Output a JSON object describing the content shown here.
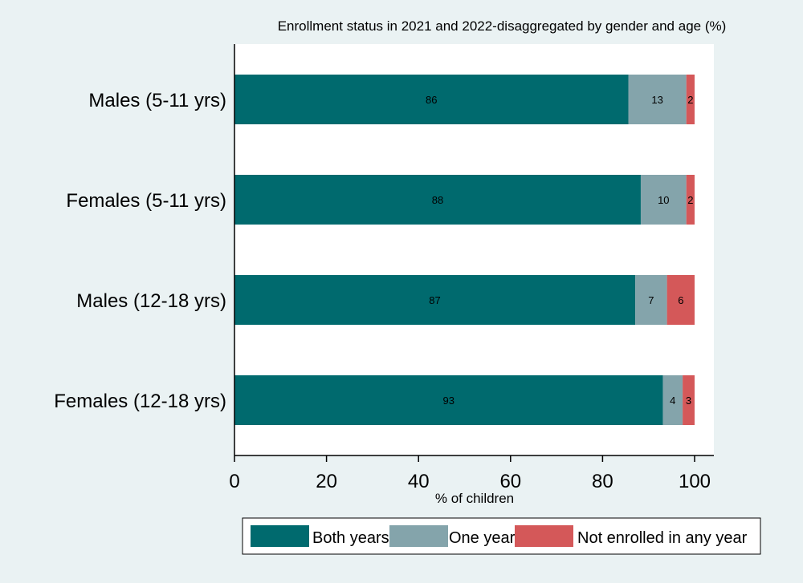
{
  "chart_data": {
    "type": "bar",
    "orientation": "horizontal",
    "stacked": true,
    "title": "Enrollment status in 2021 and 2022-disaggregated by gender and age (%)",
    "xlabel": "% of children",
    "ylabel": "",
    "xlim": [
      0,
      100
    ],
    "x_ticks": [
      "0",
      "20",
      "40",
      "60",
      "80",
      "100"
    ],
    "grid": false,
    "legend_position": "bottom",
    "categories": [
      "Males (5-11 yrs)",
      "Females (5-11 yrs)",
      "Males (12-18 yrs)",
      "Females (12-18 yrs)"
    ],
    "series": [
      {
        "name": "Both years",
        "color": "#006a6e",
        "values": [
          85.6,
          88.3,
          87.1,
          93.1
        ],
        "labels": [
          "86",
          "88",
          "87",
          "93"
        ]
      },
      {
        "name": "One year",
        "color": "#84a4ab",
        "values": [
          12.6,
          9.9,
          6.9,
          4.3
        ],
        "labels": [
          "13",
          "10",
          "7",
          "4"
        ]
      },
      {
        "name": "Not enrolled in any year",
        "color": "#d45859",
        "values": [
          1.8,
          1.8,
          6.0,
          2.6
        ],
        "labels": [
          "2",
          "2",
          "6",
          "3"
        ]
      }
    ]
  }
}
